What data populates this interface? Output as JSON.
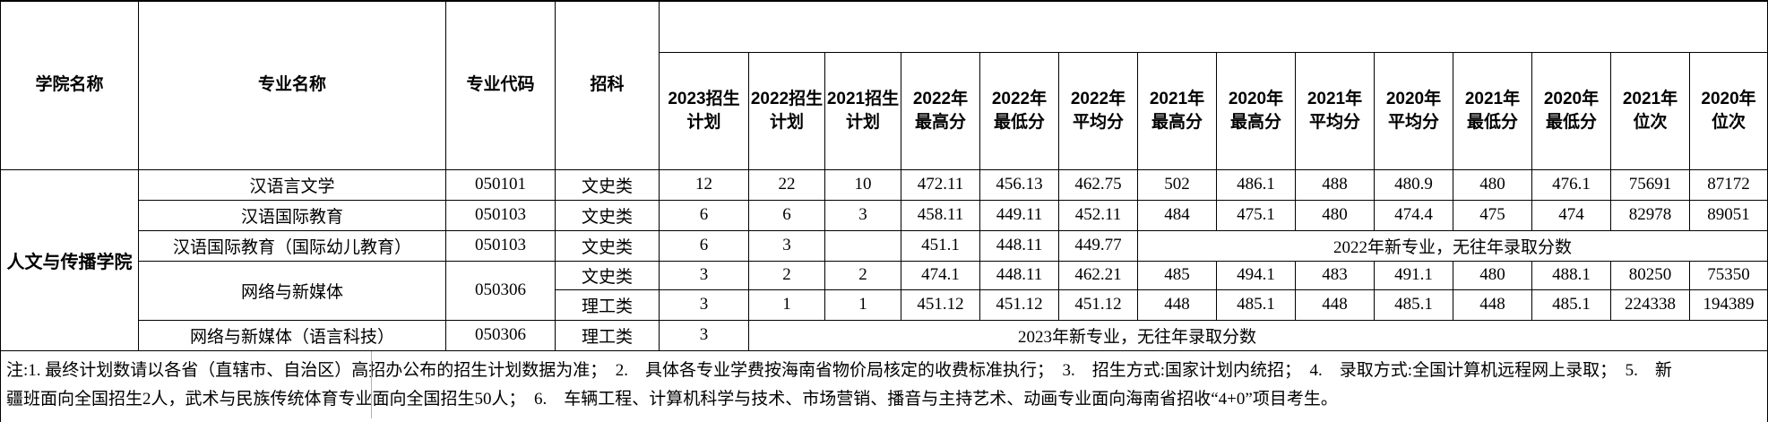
{
  "table": {
    "headers": {
      "college": "学院名称",
      "major": "专业名称",
      "code": "专业代码",
      "subject": "招科",
      "stats": [
        "2023招生\n计划",
        "2022招生\n计划",
        "2021招生\n计划",
        "2022年\n最高分",
        "2022年\n最低分",
        "2022年\n平均分",
        "2021年\n最高分",
        "2020年\n最高分",
        "2021年\n平均分",
        "2020年\n平均分",
        "2021年\n最低分",
        "2020年\n最低分",
        "2021年\n位次",
        "2020年\n位次"
      ]
    },
    "college_name": "人文与传播学院",
    "rows": [
      {
        "major": "汉语言文学",
        "code": "050101",
        "subject": "文史类",
        "values": [
          "12",
          "22",
          "10",
          "472.11",
          "456.13",
          "462.75",
          "502",
          "486.1",
          "488",
          "480.9",
          "480",
          "476.1",
          "75691",
          "87172"
        ]
      },
      {
        "major": "汉语国际教育",
        "code": "050103",
        "subject": "文史类",
        "values": [
          "6",
          "6",
          "3",
          "458.11",
          "449.11",
          "452.11",
          "484",
          "475.1",
          "480",
          "474.4",
          "475",
          "474",
          "82978",
          "89051"
        ]
      },
      {
        "major": "汉语国际教育（国际幼儿教育）",
        "code": "050103",
        "subject": "文史类",
        "values": [
          "6",
          "3",
          "",
          "451.1",
          "448.11",
          "449.77"
        ],
        "merged_note": "2022年新专业，无往年录取分数"
      },
      {
        "major": "网络与新媒体",
        "code": "050306",
        "subject": "文史类",
        "values": [
          "3",
          "2",
          "2",
          "474.1",
          "448.11",
          "462.21",
          "485",
          "494.1",
          "483",
          "491.1",
          "480",
          "488.1",
          "80250",
          "75350"
        ]
      },
      {
        "subject": "理工类",
        "values": [
          "3",
          "1",
          "1",
          "451.12",
          "451.12",
          "451.12",
          "448",
          "485.1",
          "448",
          "485.1",
          "448",
          "485.1",
          "224338",
          "194389"
        ]
      },
      {
        "major": "网络与新媒体（语言科技）",
        "code": "050306",
        "subject": "理工类",
        "values": [
          "3"
        ],
        "merged_note": "2023年新专业，无往年录取分数"
      }
    ]
  },
  "notes": {
    "line1": "注:1. 最终计划数请以各省（直辖市、自治区）高招办公布的招生计划数据为准；　2.　具体各专业学费按海南省物价局核定的收费标准执行；　3.　招生方式:国家计划内统招；　4.　录取方式:全国计算机远程网上录取；　5.　新",
    "line2": "疆班面向全国招生2人，武术与民族传统体育专业面向全国招生50人；　6.　车辆工程、计算机科学与技术、市场营销、播音与主持艺术、动画专业面向海南省招收“4+0”项目考生。"
  }
}
